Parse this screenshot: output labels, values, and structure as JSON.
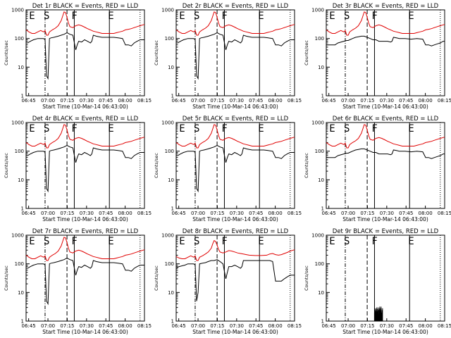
{
  "figure": {
    "background": "#ffffff",
    "colors": {
      "events": "#000000",
      "lld": "#e00000",
      "axes": "#000000"
    }
  },
  "chart_data": [
    {
      "type": "line",
      "title": "Det 1r BLACK = Events, RED = LLD",
      "xlabel": "Start Time (10-Mar-14 06:43:00)",
      "ylabel": "Counts/sec",
      "x_ticks": [
        "06:45",
        "07:00",
        "07:15",
        "07:30",
        "07:45",
        "08:00",
        "08:15"
      ],
      "y_ticks": [
        "1",
        "10",
        "100",
        "1000"
      ],
      "ylim": [
        1,
        1000
      ],
      "yscale": "log",
      "markers": [
        "E",
        "S",
        "F",
        "E"
      ],
      "series": [
        {
          "name": "Events",
          "color": "#000000",
          "profile": "events"
        },
        {
          "name": "LLD",
          "color": "#e00000",
          "profile": "lld"
        }
      ]
    },
    {
      "type": "line",
      "title": "Det 2r BLACK = Events, RED = LLD",
      "xlabel": "Start Time (10-Mar-14 06:43:00)",
      "ylabel": "Counts/sec",
      "x_ticks": [
        "06:45",
        "07:00",
        "07:15",
        "07:30",
        "07:45",
        "08:00",
        "08:15"
      ],
      "y_ticks": [
        "1",
        "10",
        "100",
        "1000"
      ],
      "ylim": [
        1,
        1000
      ],
      "yscale": "log",
      "markers": [
        "E",
        "S",
        "F",
        "E"
      ],
      "series": [
        {
          "name": "Events",
          "color": "#000000",
          "profile": "events"
        },
        {
          "name": "LLD",
          "color": "#e00000",
          "profile": "lld"
        }
      ]
    },
    {
      "type": "line",
      "title": "Det 3r BLACK = Events, RED = LLD",
      "xlabel": "Start Time (10-Mar-14 06:43:00)",
      "ylabel": "Counts/sec",
      "x_ticks": [
        "06:45",
        "07:00",
        "07:15",
        "07:30",
        "07:45",
        "08:00",
        "08:15"
      ],
      "y_ticks": [
        "1",
        "10",
        "100",
        "1000"
      ],
      "ylim": [
        1,
        1000
      ],
      "yscale": "log",
      "markers": [
        "E",
        "S",
        "F",
        "E"
      ],
      "series": [
        {
          "name": "Events",
          "color": "#000000",
          "profile": "events3"
        },
        {
          "name": "LLD",
          "color": "#e00000",
          "profile": "lld"
        }
      ]
    },
    {
      "type": "line",
      "title": "Det 4r BLACK = Events, RED = LLD",
      "xlabel": "Start Time (10-Mar-14 06:43:00)",
      "ylabel": "Counts/sec",
      "x_ticks": [
        "06:45",
        "07:00",
        "07:15",
        "07:30",
        "07:45",
        "08:00",
        "08:15"
      ],
      "y_ticks": [
        "1",
        "10",
        "100",
        "1000"
      ],
      "ylim": [
        1,
        1000
      ],
      "yscale": "log",
      "markers": [
        "E",
        "S",
        "F",
        "E"
      ],
      "series": [
        {
          "name": "Events",
          "color": "#000000",
          "profile": "events"
        },
        {
          "name": "LLD",
          "color": "#e00000",
          "profile": "lld"
        }
      ]
    },
    {
      "type": "line",
      "title": "Det 5r BLACK = Events, RED = LLD",
      "xlabel": "Start Time (10-Mar-14 06:43:00)",
      "ylabel": "Counts/sec",
      "x_ticks": [
        "06:45",
        "07:00",
        "07:15",
        "07:30",
        "07:45",
        "08:00",
        "08:15"
      ],
      "y_ticks": [
        "1",
        "10",
        "100",
        "1000"
      ],
      "ylim": [
        1,
        1000
      ],
      "yscale": "log",
      "markers": [
        "E",
        "S",
        "F",
        "E"
      ],
      "series": [
        {
          "name": "Events",
          "color": "#000000",
          "profile": "events"
        },
        {
          "name": "LLD",
          "color": "#e00000",
          "profile": "lld"
        }
      ]
    },
    {
      "type": "line",
      "title": "Det 6r BLACK = Events, RED = LLD",
      "xlabel": "Start Time (10-Mar-14 06:43:00)",
      "ylabel": "Counts/sec",
      "x_ticks": [
        "06:45",
        "07:00",
        "07:15",
        "07:30",
        "07:45",
        "08:00",
        "08:15"
      ],
      "y_ticks": [
        "1",
        "10",
        "100",
        "1000"
      ],
      "ylim": [
        1,
        1000
      ],
      "yscale": "log",
      "markers": [
        "E",
        "S",
        "F",
        "E"
      ],
      "series": [
        {
          "name": "Events",
          "color": "#000000",
          "profile": "events3"
        },
        {
          "name": "LLD",
          "color": "#e00000",
          "profile": "lld"
        }
      ]
    },
    {
      "type": "line",
      "title": "Det 7r BLACK = Events, RED = LLD",
      "xlabel": "Start Time (10-Mar-14 06:43:00)",
      "ylabel": "Counts/sec",
      "x_ticks": [
        "06:45",
        "07:00",
        "07:15",
        "07:30",
        "07:45",
        "08:00",
        "08:15"
      ],
      "y_ticks": [
        "1",
        "10",
        "100",
        "1000"
      ],
      "ylim": [
        1,
        1000
      ],
      "yscale": "log",
      "markers": [
        "E",
        "S",
        "F",
        "E"
      ],
      "series": [
        {
          "name": "Events",
          "color": "#000000",
          "profile": "events"
        },
        {
          "name": "LLD",
          "color": "#e00000",
          "profile": "lld"
        }
      ]
    },
    {
      "type": "line",
      "title": "Det 8r BLACK = Events, RED = LLD",
      "xlabel": "Start Time (10-Mar-14 06:43:00)",
      "ylabel": "Counts/sec",
      "x_ticks": [
        "06:45",
        "07:00",
        "07:15",
        "07:30",
        "07:45",
        "08:00",
        "08:15"
      ],
      "y_ticks": [
        "1",
        "10",
        "100",
        "1000"
      ],
      "ylim": [
        1,
        1000
      ],
      "yscale": "log",
      "markers": [
        "E",
        "S",
        "F",
        "E"
      ],
      "series": [
        {
          "name": "Events",
          "color": "#000000",
          "profile": "events8"
        },
        {
          "name": "LLD",
          "color": "#e00000",
          "profile": "lld8"
        }
      ]
    },
    {
      "type": "line",
      "title": "Det 9r BLACK = Events, RED = LLD",
      "xlabel": "Start Time (10-Mar-14 06:43:00)",
      "ylabel": "Counts/sec",
      "x_ticks": [
        "06:45",
        "07:00",
        "07:15",
        "07:30",
        "07:45",
        "08:00",
        "08:15"
      ],
      "y_ticks": [
        "1",
        "10",
        "100",
        "1000"
      ],
      "ylim": [
        1,
        1000
      ],
      "yscale": "log",
      "markers": [
        "E",
        "S",
        "F",
        "E"
      ],
      "series": [
        {
          "name": "Events",
          "color": "#000000",
          "profile": "spikes"
        }
      ]
    }
  ],
  "profiles": {
    "events": [
      [
        0,
        70
      ],
      [
        1,
        70
      ],
      [
        3,
        80
      ],
      [
        5,
        90
      ],
      [
        8,
        100
      ],
      [
        12,
        100
      ],
      [
        13,
        90
      ],
      [
        14,
        5
      ],
      [
        15,
        4
      ],
      [
        16,
        100
      ],
      [
        17,
        105
      ],
      [
        19,
        110
      ],
      [
        22,
        120
      ],
      [
        24,
        130
      ],
      [
        26,
        140
      ],
      [
        28,
        160
      ],
      [
        30,
        140
      ],
      [
        32,
        130
      ],
      [
        34,
        40
      ],
      [
        35,
        60
      ],
      [
        36,
        80
      ],
      [
        38,
        75
      ],
      [
        40,
        90
      ],
      [
        42,
        80
      ],
      [
        44,
        70
      ],
      [
        45,
        80
      ],
      [
        46,
        130
      ],
      [
        48,
        120
      ],
      [
        50,
        115
      ],
      [
        52,
        110
      ],
      [
        54,
        110
      ],
      [
        57,
        110
      ],
      [
        60,
        110
      ],
      [
        63,
        105
      ],
      [
        66,
        100
      ],
      [
        68,
        60
      ],
      [
        70,
        60
      ],
      [
        72,
        55
      ],
      [
        74,
        70
      ],
      [
        76,
        80
      ],
      [
        78,
        90
      ],
      [
        80,
        90
      ],
      [
        81,
        90
      ]
    ],
    "events3": [
      [
        0,
        60
      ],
      [
        2,
        60
      ],
      [
        4,
        60
      ],
      [
        6,
        60
      ],
      [
        8,
        70
      ],
      [
        12,
        80
      ],
      [
        14,
        85
      ],
      [
        15,
        85
      ],
      [
        16,
        90
      ],
      [
        18,
        100
      ],
      [
        20,
        110
      ],
      [
        22,
        115
      ],
      [
        24,
        120
      ],
      [
        26,
        120
      ],
      [
        28,
        110
      ],
      [
        30,
        100
      ],
      [
        32,
        90
      ],
      [
        34,
        90
      ],
      [
        36,
        80
      ],
      [
        38,
        80
      ],
      [
        40,
        80
      ],
      [
        42,
        80
      ],
      [
        44,
        75
      ],
      [
        45,
        80
      ],
      [
        46,
        110
      ],
      [
        48,
        105
      ],
      [
        50,
        100
      ],
      [
        54,
        100
      ],
      [
        58,
        95
      ],
      [
        62,
        100
      ],
      [
        66,
        95
      ],
      [
        68,
        60
      ],
      [
        70,
        60
      ],
      [
        72,
        55
      ],
      [
        74,
        60
      ],
      [
        76,
        65
      ],
      [
        78,
        70
      ],
      [
        80,
        80
      ],
      [
        81,
        80
      ]
    ],
    "events8": [
      [
        0,
        70
      ],
      [
        2,
        80
      ],
      [
        4,
        85
      ],
      [
        6,
        90
      ],
      [
        8,
        100
      ],
      [
        12,
        100
      ],
      [
        13,
        90
      ],
      [
        14,
        5
      ],
      [
        15,
        10
      ],
      [
        16,
        100
      ],
      [
        18,
        105
      ],
      [
        20,
        110
      ],
      [
        22,
        120
      ],
      [
        24,
        130
      ],
      [
        26,
        130
      ],
      [
        28,
        140
      ],
      [
        30,
        120
      ],
      [
        32,
        100
      ],
      [
        34,
        30
      ],
      [
        35,
        50
      ],
      [
        36,
        80
      ],
      [
        38,
        80
      ],
      [
        40,
        90
      ],
      [
        42,
        80
      ],
      [
        44,
        70
      ],
      [
        45,
        80
      ],
      [
        46,
        130
      ],
      [
        48,
        130
      ],
      [
        52,
        130
      ],
      [
        56,
        130
      ],
      [
        60,
        130
      ],
      [
        64,
        130
      ],
      [
        66,
        120
      ],
      [
        68,
        25
      ],
      [
        70,
        25
      ],
      [
        72,
        25
      ],
      [
        74,
        30
      ],
      [
        76,
        35
      ],
      [
        78,
        40
      ],
      [
        80,
        40
      ],
      [
        81,
        40
      ]
    ],
    "lld": [
      [
        0,
        200
      ],
      [
        2,
        170
      ],
      [
        4,
        150
      ],
      [
        6,
        150
      ],
      [
        8,
        170
      ],
      [
        10,
        190
      ],
      [
        12,
        170
      ],
      [
        13,
        190
      ],
      [
        14,
        130
      ],
      [
        15,
        130
      ],
      [
        16,
        170
      ],
      [
        18,
        200
      ],
      [
        20,
        230
      ],
      [
        22,
        280
      ],
      [
        24,
        420
      ],
      [
        25,
        600
      ],
      [
        26,
        850
      ],
      [
        27,
        800
      ],
      [
        28,
        550
      ],
      [
        29,
        350
      ],
      [
        30,
        260
      ],
      [
        32,
        240
      ],
      [
        34,
        280
      ],
      [
        36,
        300
      ],
      [
        38,
        280
      ],
      [
        40,
        250
      ],
      [
        42,
        220
      ],
      [
        44,
        200
      ],
      [
        46,
        180
      ],
      [
        48,
        170
      ],
      [
        50,
        160
      ],
      [
        52,
        150
      ],
      [
        54,
        150
      ],
      [
        56,
        150
      ],
      [
        58,
        150
      ],
      [
        60,
        150
      ],
      [
        62,
        160
      ],
      [
        64,
        170
      ],
      [
        66,
        180
      ],
      [
        68,
        200
      ],
      [
        70,
        210
      ],
      [
        72,
        220
      ],
      [
        74,
        240
      ],
      [
        76,
        260
      ],
      [
        78,
        280
      ],
      [
        80,
        300
      ],
      [
        81,
        310
      ]
    ],
    "lld8": [
      [
        0,
        180
      ],
      [
        2,
        160
      ],
      [
        4,
        150
      ],
      [
        6,
        150
      ],
      [
        8,
        170
      ],
      [
        10,
        190
      ],
      [
        12,
        170
      ],
      [
        13,
        190
      ],
      [
        14,
        130
      ],
      [
        15,
        130
      ],
      [
        16,
        170
      ],
      [
        18,
        190
      ],
      [
        20,
        220
      ],
      [
        22,
        260
      ],
      [
        24,
        350
      ],
      [
        25,
        500
      ],
      [
        26,
        650
      ],
      [
        27,
        600
      ],
      [
        28,
        450
      ],
      [
        29,
        320
      ],
      [
        30,
        260
      ],
      [
        32,
        240
      ],
      [
        34,
        260
      ],
      [
        36,
        290
      ],
      [
        38,
        280
      ],
      [
        40,
        260
      ],
      [
        42,
        240
      ],
      [
        44,
        230
      ],
      [
        46,
        220
      ],
      [
        48,
        210
      ],
      [
        50,
        200
      ],
      [
        54,
        195
      ],
      [
        58,
        195
      ],
      [
        62,
        200
      ],
      [
        64,
        220
      ],
      [
        66,
        230
      ],
      [
        68,
        210
      ],
      [
        70,
        200
      ],
      [
        72,
        210
      ],
      [
        74,
        230
      ],
      [
        76,
        250
      ],
      [
        78,
        280
      ],
      [
        80,
        300
      ],
      [
        81,
        310
      ]
    ],
    "spikes": [
      [
        33,
        2.0
      ],
      [
        34,
        2.2
      ],
      [
        35,
        1.8
      ],
      [
        36,
        2.4
      ],
      [
        37,
        2.0
      ]
    ]
  },
  "marker_positions": [
    3,
    13,
    32,
    57
  ],
  "vlines": [
    [
      0,
      "dot"
    ],
    [
      13,
      "dashdot"
    ],
    [
      28,
      "dash"
    ],
    [
      33,
      "solid"
    ],
    [
      57,
      "solid"
    ],
    [
      78,
      "dot"
    ]
  ]
}
